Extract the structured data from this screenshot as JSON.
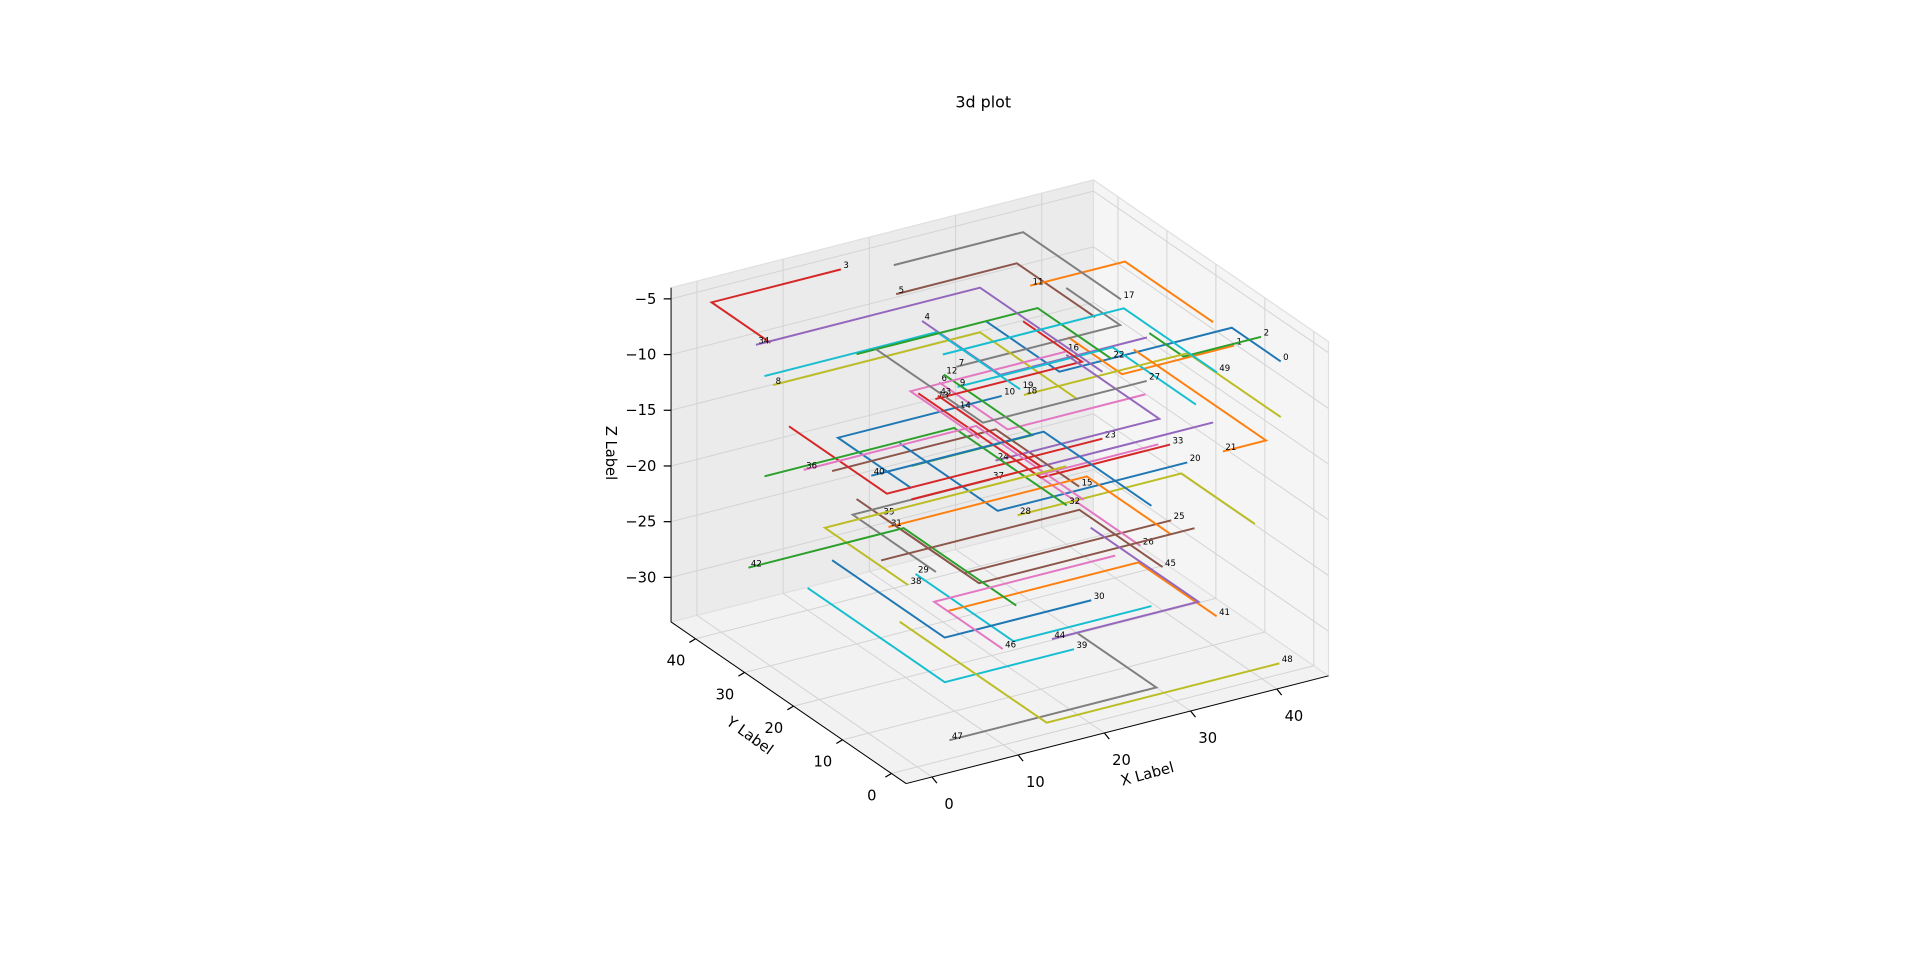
{
  "chart_data": {
    "type": "line3d",
    "title": "3d plot",
    "x_label": "X Label",
    "y_label": "Y Label",
    "z_label": "Z Label",
    "xlim": [
      -3,
      46
    ],
    "ylim": [
      -3,
      45
    ],
    "zlim": [
      -34,
      -4
    ],
    "xticks": [
      0,
      10,
      20,
      30,
      40
    ],
    "yticks": [
      0,
      10,
      20,
      30,
      40
    ],
    "zticks": [
      {
        "value": -30,
        "label": "−30"
      },
      {
        "value": -25,
        "label": "−25"
      },
      {
        "value": -20,
        "label": "−20"
      },
      {
        "value": -15,
        "label": "−15"
      },
      {
        "value": -10,
        "label": "−10"
      },
      {
        "value": -5,
        "label": "−5"
      }
    ],
    "grid": true,
    "series": [
      {
        "name": "0",
        "color": "#1f77b4",
        "x": [
          25,
          25,
          45,
          45
        ],
        "y": [
          30,
          15,
          15,
          5
        ],
        "z": [
          -8,
          -8,
          -8,
          -8
        ]
      },
      {
        "name": "1",
        "color": "#ff7f0e",
        "x": [
          30,
          30,
          43
        ],
        "y": [
          22,
          11,
          11
        ],
        "z": [
          -8,
          -8,
          -8
        ]
      },
      {
        "name": "2",
        "color": "#2ca02c",
        "x": [
          36,
          36,
          45
        ],
        "y": [
          16,
          9,
          9
        ],
        "z": [
          -7,
          -7,
          -7
        ]
      },
      {
        "name": "3",
        "color": "#d62728",
        "x": [
          0,
          0,
          15
        ],
        "y": [
          30,
          42,
          42
        ],
        "z": [
          -5,
          -5,
          -5
        ]
      },
      {
        "name": "4",
        "color": "#9467bd",
        "x": [
          38,
          21,
          21
        ],
        "y": [
          20,
          20,
          36
        ],
        "z": [
          -9,
          -9,
          -9
        ]
      },
      {
        "name": "5",
        "color": "#8c564b",
        "x": [
          32,
          32,
          18
        ],
        "y": [
          20,
          36,
          36
        ],
        "z": [
          -6,
          -6,
          -6
        ]
      },
      {
        "name": "6",
        "color": "#e377c2",
        "x": [
          35,
          19,
          19
        ],
        "y": [
          15,
          15,
          29
        ],
        "z": [
          -12,
          -12,
          -12
        ]
      },
      {
        "name": "7",
        "color": "#7f7f7f",
        "x": [
          40,
          40,
          21
        ],
        "y": [
          40,
          29,
          29
        ],
        "z": [
          -11,
          -11,
          -11
        ]
      },
      {
        "name": "8",
        "color": "#bcbd22",
        "x": [
          30,
          30,
          6
        ],
        "y": [
          20,
          40,
          40
        ],
        "z": [
          -13,
          -13,
          -13
        ]
      },
      {
        "name": "9",
        "color": "#17becf",
        "x": [
          38,
          38,
          20
        ],
        "y": [
          10,
          27,
          27
        ],
        "z": [
          -12,
          -12,
          -12
        ]
      },
      {
        "name": "10",
        "color": "#1f77b4",
        "x": [
          5,
          5,
          24
        ],
        "y": [
          10,
          25,
          25
        ],
        "z": [
          -13,
          -13,
          -13
        ]
      },
      {
        "name": "11",
        "color": "#ff7f0e",
        "x": [
          40,
          40,
          29
        ],
        "y": [
          10,
          28,
          28
        ],
        "z": [
          -5,
          -5,
          -5
        ]
      },
      {
        "name": "12",
        "color": "#2ca02c",
        "x": [
          5,
          19,
          19
        ],
        "y": [
          10,
          10,
          28
        ],
        "z": [
          -11,
          -11,
          -11
        ]
      },
      {
        "name": "13",
        "color": "#d62728",
        "x": [
          35,
          35,
          18
        ],
        "y": [
          40,
          28,
          28
        ],
        "z": [
          -13,
          -13,
          -13
        ]
      },
      {
        "name": "14",
        "color": "#9467bd",
        "x": [
          40,
          20,
          20
        ],
        "y": [
          10,
          10,
          27
        ],
        "z": [
          -14,
          -14,
          -14
        ]
      },
      {
        "name": "15",
        "color": "#8c564b",
        "x": [
          10,
          29,
          29
        ],
        "y": [
          35,
          35,
          18
        ],
        "z": [
          -20,
          -20,
          -20
        ]
      },
      {
        "name": "16",
        "color": "#e377c2",
        "x": [
          10,
          10,
          28
        ],
        "y": [
          5,
          19,
          19
        ],
        "z": [
          -8,
          -8,
          -8
        ]
      },
      {
        "name": "17",
        "color": "#7f7f7f",
        "x": [
          20,
          35,
          35
        ],
        "y": [
          40,
          40,
          20
        ],
        "z": [
          -5,
          -5,
          -5
        ]
      },
      {
        "name": "18",
        "color": "#bcbd22",
        "x": [
          45,
          45,
          26
        ],
        "y": [
          5,
          24,
          24
        ],
        "z": [
          -13,
          -13,
          -13
        ]
      },
      {
        "name": "19",
        "color": "#17becf",
        "x": [
          5,
          25,
          25
        ],
        "y": [
          40,
          40,
          23
        ],
        "z": [
          -12,
          -12,
          -12
        ]
      },
      {
        "name": "20",
        "color": "#1f77b4",
        "x": [
          15,
          15,
          37
        ],
        "y": [
          30,
          10,
          10
        ],
        "z": [
          -17,
          -17,
          -17
        ]
      },
      {
        "name": "21",
        "color": "#ff7f0e",
        "x": [
          45,
          45,
          40
        ],
        "y": [
          35,
          8,
          8
        ],
        "z": [
          -16,
          -16,
          -16
        ]
      },
      {
        "name": "22",
        "color": "#2ca02c",
        "x": [
          10,
          31,
          31
        ],
        "y": [
          30,
          30,
          15
        ],
        "z": [
          -8,
          -8,
          -8
        ]
      },
      {
        "name": "23",
        "color": "#d62728",
        "x": [
          5,
          5,
          30
        ],
        "y": [
          35,
          15,
          15
        ],
        "z": [
          -15,
          -15,
          -15
        ]
      },
      {
        "name": "24",
        "color": "#9467bd",
        "x": [
          40,
          40,
          21
        ],
        "y": [
          40,
          21,
          21
        ],
        "z": [
          -17,
          -17,
          -17
        ]
      },
      {
        "name": "25",
        "color": "#8c564b",
        "x": [
          10,
          10,
          34
        ],
        "y": [
          30,
          8,
          8
        ],
        "z": [
          -21,
          -21,
          -21
        ]
      },
      {
        "name": "26",
        "color": "#e377c2",
        "x": [
          45,
          31,
          31
        ],
        "y": [
          30,
          30,
          9
        ],
        "z": [
          -23,
          -23,
          -23
        ]
      },
      {
        "name": "27",
        "color": "#7f7f7f",
        "x": [
          15,
          15,
          34
        ],
        "y": [
          35,
          13,
          13
        ],
        "z": [
          -10,
          -10,
          -10
        ]
      },
      {
        "name": "28",
        "color": "#bcbd22",
        "x": [
          42,
          42,
          23
        ],
        "y": [
          5,
          20,
          20
        ],
        "z": [
          -22,
          -22,
          -22
        ]
      },
      {
        "name": "29",
        "color": "#17becf",
        "x": [
          30,
          14,
          14
        ],
        "y": [
          5,
          5,
          25
        ],
        "z": [
          -27,
          -27,
          -27
        ]
      },
      {
        "name": "30",
        "color": "#1f77b4",
        "x": [
          10,
          10,
          27
        ],
        "y": [
          35,
          12,
          12
        ],
        "z": [
          -28,
          -28,
          -28
        ]
      },
      {
        "name": "31",
        "color": "#ff7f0e",
        "x": [
          35,
          35,
          12
        ],
        "y": [
          10,
          27,
          27
        ],
        "z": [
          -23,
          -23,
          -23
        ]
      },
      {
        "name": "32",
        "color": "#2ca02c",
        "x": [
          5,
          27,
          27
        ],
        "y": [
          40,
          40,
          17
        ],
        "z": [
          -21,
          -21,
          -21
        ]
      },
      {
        "name": "33",
        "color": "#d62728",
        "x": [
          20,
          20,
          35
        ],
        "y": [
          35,
          10,
          10
        ],
        "z": [
          -15,
          -15,
          -15
        ]
      },
      {
        "name": "34",
        "color": "#9467bd",
        "x": [
          30,
          30,
          4
        ],
        "y": [
          15,
          40,
          40
        ],
        "z": [
          -9,
          -9,
          -9
        ]
      },
      {
        "name": "35",
        "color": "#8c564b",
        "x": [
          35,
          10,
          10
        ],
        "y": [
          5,
          5,
          25
        ],
        "z": [
          -21,
          -21,
          -21
        ]
      },
      {
        "name": "36",
        "color": "#e377c2",
        "x": [
          25,
          25,
          5
        ],
        "y": [
          10,
          32,
          32
        ],
        "z": [
          -18,
          -18,
          -18
        ]
      },
      {
        "name": "37",
        "color": "#7f7f7f",
        "x": [
          5,
          5,
          21
        ],
        "y": [
          5,
          22,
          22
        ],
        "z": [
          -19,
          -19,
          -19
        ]
      },
      {
        "name": "38",
        "color": "#bcbd22",
        "x": [
          40,
          12,
          12
        ],
        "y": [
          40,
          40,
          23
        ],
        "z": [
          -27,
          -27,
          -27
        ]
      },
      {
        "name": "39",
        "color": "#17becf",
        "x": [
          10,
          10,
          25
        ],
        "y": [
          40,
          12,
          12
        ],
        "z": [
          -32,
          -32,
          -32
        ]
      },
      {
        "name": "40",
        "color": "#1f77b4",
        "x": [
          30,
          30,
          10
        ],
        "y": [
          5,
          27,
          27
        ],
        "z": [
          -18,
          -18,
          -18
        ]
      },
      {
        "name": "41",
        "color": "#ff7f0e",
        "x": [
          15,
          37,
          37
        ],
        "y": [
          20,
          20,
          4
        ],
        "z": [
          -29,
          -29,
          -29
        ]
      },
      {
        "name": "42",
        "color": "#2ca02c",
        "x": [
          20,
          20,
          2
        ],
        "y": [
          15,
          38,
          38
        ],
        "z": [
          -28,
          -28,
          -28
        ]
      },
      {
        "name": "43",
        "color": "#d62728",
        "x": [
          5,
          20,
          20
        ],
        "y": [
          10,
          10,
          31
        ],
        "z": [
          -14,
          -14,
          -14
        ]
      },
      {
        "name": "44",
        "color": "#9467bd",
        "x": [
          40,
          40,
          23
        ],
        "y": [
          35,
          13,
          13
        ],
        "z": [
          -31,
          -31,
          -31
        ]
      },
      {
        "name": "45",
        "color": "#8c564b",
        "x": [
          10,
          33,
          33
        ],
        "y": [
          25,
          25,
          8
        ],
        "z": [
          -25,
          -25,
          -25
        ]
      },
      {
        "name": "46",
        "color": "#e377c2",
        "x": [
          40,
          19,
          19
        ],
        "y": [
          30,
          30,
          16
        ],
        "z": [
          -32,
          -32,
          -32
        ]
      },
      {
        "name": "47",
        "color": "#7f7f7f",
        "x": [
          30,
          30,
          6
        ],
        "y": [
          20,
          4,
          4
        ],
        "z": [
          -34,
          -34,
          -34
        ]
      },
      {
        "name": "48",
        "color": "#bcbd22",
        "x": [
          15,
          15,
          42
        ],
        "y": [
          30,
          0,
          0
        ],
        "z": [
          -33,
          -33,
          -33
        ]
      },
      {
        "name": "49",
        "color": "#17becf",
        "x": [
          20,
          41,
          41
        ],
        "y": [
          30,
          30,
          11
        ],
        "z": [
          -10,
          -10,
          -10
        ]
      }
    ]
  }
}
